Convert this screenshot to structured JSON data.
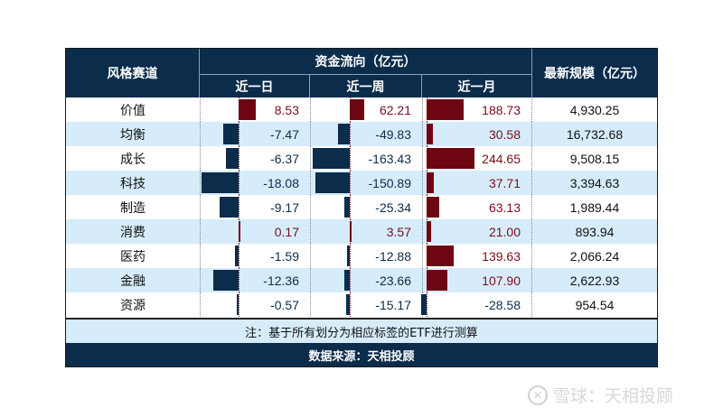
{
  "table": {
    "headers": {
      "style": "风格赛道",
      "flow_group": "资金流向（亿元）",
      "day": "近一日",
      "week": "近一周",
      "month": "近一月",
      "scale": "最新规模（亿元）"
    },
    "rows": [
      {
        "name": "价值",
        "day": "8.53",
        "week": "62.21",
        "month": "188.73",
        "scale": "4,930.25"
      },
      {
        "name": "均衡",
        "day": "-7.47",
        "week": "-49.83",
        "month": "30.58",
        "scale": "16,732.68"
      },
      {
        "name": "成长",
        "day": "-6.37",
        "week": "-163.43",
        "month": "244.65",
        "scale": "9,508.15"
      },
      {
        "name": "科技",
        "day": "-18.08",
        "week": "-150.89",
        "month": "37.71",
        "scale": "3,394.63"
      },
      {
        "name": "制造",
        "day": "-9.17",
        "week": "-25.34",
        "month": "63.13",
        "scale": "1,989.44"
      },
      {
        "name": "消费",
        "day": "0.17",
        "week": "3.57",
        "month": "21.00",
        "scale": "893.94"
      },
      {
        "name": "医药",
        "day": "-1.59",
        "week": "-12.88",
        "month": "139.63",
        "scale": "2,066.24"
      },
      {
        "name": "金融",
        "day": "-12.36",
        "week": "-23.66",
        "month": "107.90",
        "scale": "2,622.93"
      },
      {
        "name": "资源",
        "day": "-0.57",
        "week": "-15.17",
        "month": "-28.58",
        "scale": "954.54"
      }
    ],
    "note": "注：基于所有划分为相应标签的ETF进行测算",
    "source": "数据来源：天相投顾"
  },
  "colors": {
    "header_bg": "#0b2c4b",
    "positive": "#6e0512",
    "negative": "#0b2c4b",
    "alt_row": "#d6ecfb"
  },
  "watermark": {
    "logo": "⊘",
    "text": "雪球：天相投顾"
  }
}
